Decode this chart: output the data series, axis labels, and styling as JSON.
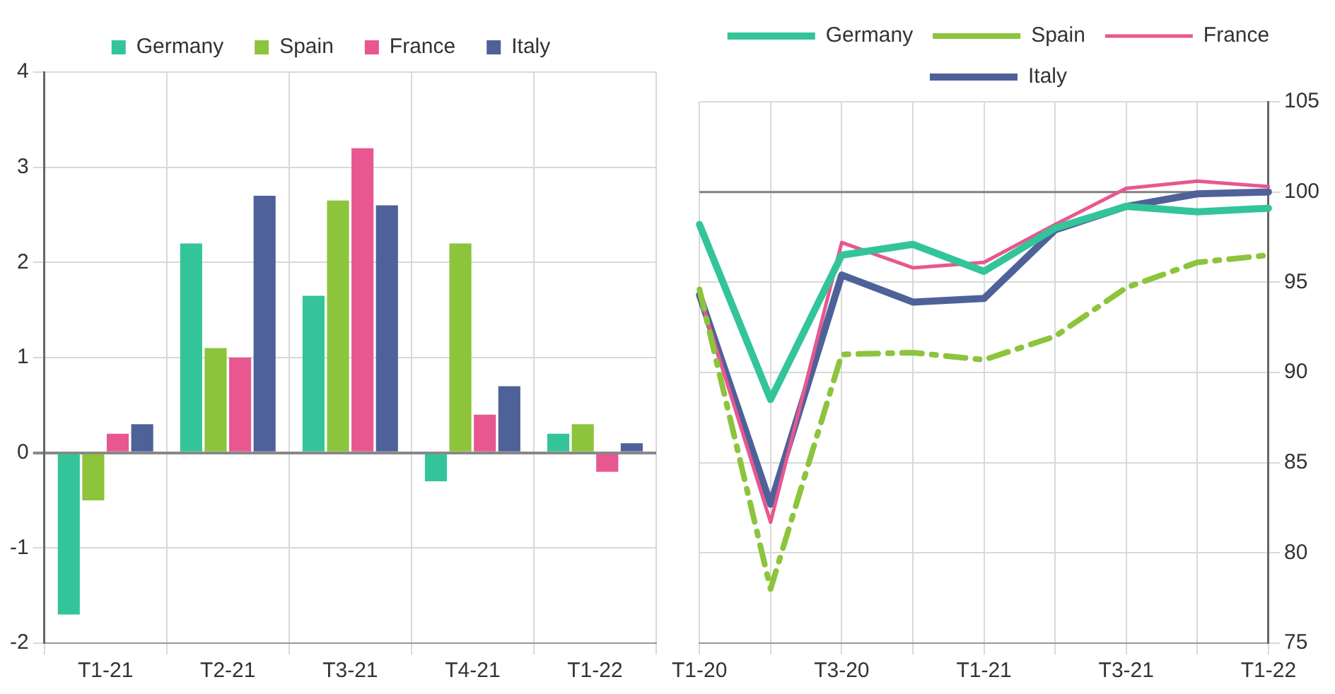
{
  "chart_data": [
    {
      "type": "bar",
      "categories": [
        "T1-21",
        "T2-21",
        "T3-21",
        "T4-21",
        "T1-22"
      ],
      "series": [
        {
          "name": "Germany",
          "color": "#33c49a",
          "values": [
            -1.7,
            2.2,
            1.65,
            -0.3,
            0.2
          ]
        },
        {
          "name": "Spain",
          "color": "#8cc43c",
          "values": [
            -0.5,
            1.1,
            2.65,
            2.2,
            0.3
          ]
        },
        {
          "name": "France",
          "color": "#e8578f",
          "values": [
            0.2,
            1.0,
            3.2,
            0.4,
            -0.2
          ]
        },
        {
          "name": "Italy",
          "color": "#4f6199",
          "values": [
            0.3,
            2.7,
            2.6,
            0.7,
            0.1
          ]
        }
      ],
      "ylim": [
        -2,
        4
      ],
      "yticks": [
        -2,
        -1,
        0,
        1,
        2,
        3,
        4
      ],
      "grid": true,
      "legend": "top"
    },
    {
      "type": "line",
      "categories": [
        "T1-20",
        null,
        "T3-20",
        null,
        "T1-21",
        null,
        "T3-21",
        null,
        "T1-22"
      ],
      "series": [
        {
          "name": "Germany",
          "color": "#33c49a",
          "values": [
            98.2,
            88.5,
            96.5,
            97.1,
            95.6,
            98.0,
            99.2,
            98.9,
            99.1
          ]
        },
        {
          "name": "Spain",
          "color": "#8cc43c",
          "line_style": "dashed",
          "values": [
            94.6,
            78.0,
            91.0,
            91.1,
            90.7,
            92.0,
            94.7,
            96.1,
            96.5
          ]
        },
        {
          "name": "France",
          "color": "#e8578f",
          "values": [
            94.3,
            81.7,
            97.2,
            95.8,
            96.1,
            98.2,
            100.2,
            100.6,
            100.3
          ]
        },
        {
          "name": "Italy",
          "color": "#4f6199",
          "values": [
            94.3,
            82.7,
            95.4,
            93.9,
            94.1,
            97.9,
            99.2,
            99.9,
            100.0
          ]
        }
      ],
      "ylim": [
        75,
        105
      ],
      "yticks": [
        75,
        80,
        85,
        90,
        95,
        100,
        105
      ],
      "grid": true,
      "legend": "top",
      "marker": "none",
      "ref_lines": [
        {
          "axis": "y",
          "value": 100,
          "color": "#808080"
        }
      ]
    }
  ]
}
